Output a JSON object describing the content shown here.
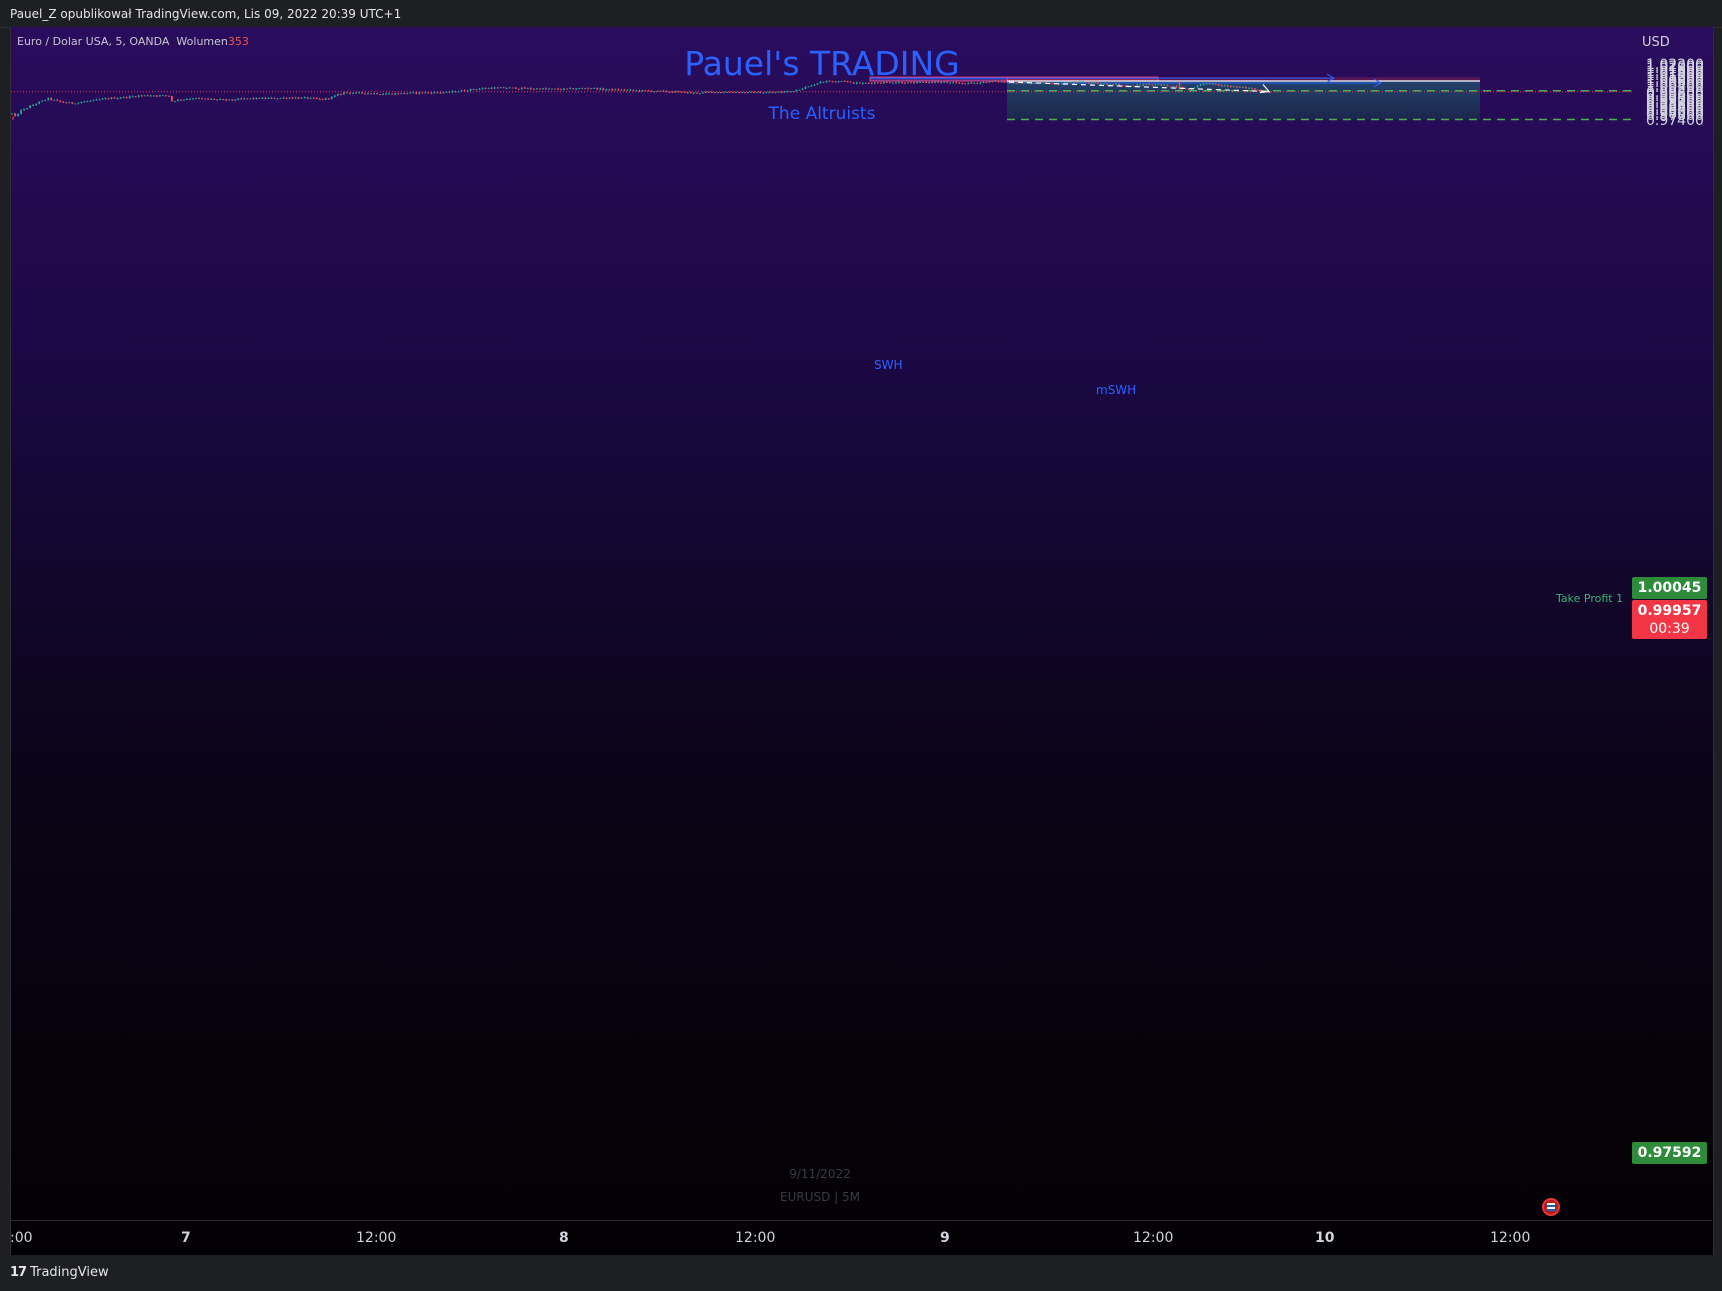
{
  "header": {
    "published_by": "Pauel_Z opublikował TradingView.com, Lis 09, 2022 20:39 UTC+1"
  },
  "symbol": {
    "name": "Euro / Dolar USA, 5, OANDA",
    "volume_label": "Wolumen",
    "volume_value": "353"
  },
  "currency": "USD",
  "brand": {
    "title": "Pauel's TRADING",
    "subtitle": "The Altruists"
  },
  "annotations": {
    "swh": "SWH",
    "mswh": "mSWH",
    "take_profit": "Take Profit 1"
  },
  "price_badges": {
    "take_profit": "1.00045",
    "current_price": "0.99957",
    "countdown": "00:39",
    "stop": "0.97592"
  },
  "watermark": {
    "date": "9/11/2022",
    "symbol": "EURUSD | 5M"
  },
  "footer": {
    "logo_mark": "17",
    "logo_text": "TradingView"
  },
  "colors": {
    "up": "#26a69a",
    "down": "#ef5350",
    "brand": "#2962ff",
    "badge_green": "#2e8b3a",
    "badge_red": "#f23645"
  },
  "chart_data": {
    "type": "candlestick",
    "y_ticks": [
      "1.02200",
      "1.02000",
      "1.01800",
      "1.01600",
      "1.01400",
      "1.01200",
      "1.01000",
      "1.00800",
      "1.00600",
      "1.00400",
      "1.00200",
      "0.99800",
      "0.99600",
      "0.99400",
      "0.99200",
      "0.99000",
      "0.98800",
      "0.98600",
      "0.98400",
      "0.98200",
      "0.98000",
      "0.97800",
      "0.97400"
    ],
    "x_ticks": [
      {
        "label": ":00",
        "bold": false
      },
      {
        "label": "7",
        "bold": true
      },
      {
        "label": "12:00",
        "bold": false
      },
      {
        "label": "8",
        "bold": true
      },
      {
        "label": "12:00",
        "bold": false
      },
      {
        "label": "9",
        "bold": true
      },
      {
        "label": "12:00",
        "bold": false
      },
      {
        "label": "10",
        "bold": true
      },
      {
        "label": "12:00",
        "bold": false
      }
    ],
    "ylim": [
      0.973,
      1.0232
    ],
    "path": [
      [
        0,
        0.9808
      ],
      [
        1,
        0.9783
      ],
      [
        3,
        0.9835
      ],
      [
        5,
        0.986
      ],
      [
        8,
        0.9896
      ],
      [
        12,
        0.9938
      ],
      [
        16,
        0.991
      ],
      [
        20,
        0.9898
      ],
      [
        26,
        0.9918
      ],
      [
        32,
        0.994
      ],
      [
        38,
        0.995
      ],
      [
        42,
        0.9962
      ],
      [
        46,
        0.9966
      ],
      [
        52,
        0.9962
      ],
      [
        53,
        0.9916
      ],
      [
        56,
        0.993
      ],
      [
        60,
        0.994
      ],
      [
        66,
        0.9932
      ],
      [
        72,
        0.9925
      ],
      [
        78,
        0.9938
      ],
      [
        85,
        0.994
      ],
      [
        92,
        0.9945
      ],
      [
        98,
        0.9942
      ],
      [
        103,
        0.993
      ],
      [
        106,
        0.995
      ],
      [
        110,
        0.999
      ],
      [
        114,
        0.9985
      ],
      [
        120,
        0.9982
      ],
      [
        126,
        0.9978
      ],
      [
        132,
        0.9985
      ],
      [
        138,
        0.9988
      ],
      [
        144,
        0.999
      ],
      [
        152,
        1.0015
      ],
      [
        158,
        1.0028
      ],
      [
        164,
        1.003
      ],
      [
        170,
        1.0024
      ],
      [
        176,
        1.0022
      ],
      [
        182,
        1.0018
      ],
      [
        188,
        1.0024
      ],
      [
        192,
        1.0028
      ],
      [
        196,
        1.0015
      ],
      [
        204,
        1.001
      ],
      [
        212,
        1.0002
      ],
      [
        220,
        0.9996
      ],
      [
        226,
        0.9985
      ],
      [
        232,
        0.9992
      ],
      [
        238,
        0.9995
      ],
      [
        244,
        0.999
      ],
      [
        252,
        0.999
      ],
      [
        258,
        1.0
      ],
      [
        264,
        1.004
      ],
      [
        268,
        1.0082
      ],
      [
        272,
        1.0088
      ],
      [
        276,
        1.009
      ],
      [
        278,
        1.0072
      ],
      [
        282,
        1.0068
      ],
      [
        286,
        1.0075
      ],
      [
        292,
        1.0078
      ],
      [
        298,
        1.0072
      ],
      [
        306,
        1.008
      ],
      [
        312,
        1.007
      ],
      [
        318,
        1.0068
      ],
      [
        322,
        1.0078
      ],
      [
        326,
        1.0085
      ],
      [
        330,
        1.0078
      ],
      [
        336,
        1.0072
      ],
      [
        342,
        1.007
      ],
      [
        346,
        1.0062
      ],
      [
        350,
        1.0075
      ],
      [
        354,
        1.0082
      ],
      [
        358,
        1.0072
      ],
      [
        362,
        1.0062
      ],
      [
        366,
        1.0058
      ],
      [
        370,
        1.004
      ],
      [
        374,
        1.0055
      ],
      [
        378,
        1.0062
      ],
      [
        382,
        1.0052
      ],
      [
        386,
        1.004
      ],
      [
        388,
        1.0025
      ],
      [
        390,
        1.0018
      ],
      [
        392,
        1.0035
      ],
      [
        394,
        1.0062
      ],
      [
        397,
        1.0065
      ],
      [
        400,
        1.005
      ],
      [
        404,
        1.0042
      ],
      [
        408,
        1.003
      ],
      [
        411,
        1.0025
      ],
      [
        414,
        1.0005
      ],
      [
        416,
        0.9997
      ],
      [
        417,
        0.9996
      ]
    ],
    "spike_up": {
      "i": 387,
      "high": 1.00855,
      "low": 1.0015
    },
    "levels": {
      "swh_price": 1.00955,
      "mswh_price": 1.0088,
      "take_profit": 1.00045,
      "current": 0.99957,
      "stop": 0.97592
    }
  }
}
